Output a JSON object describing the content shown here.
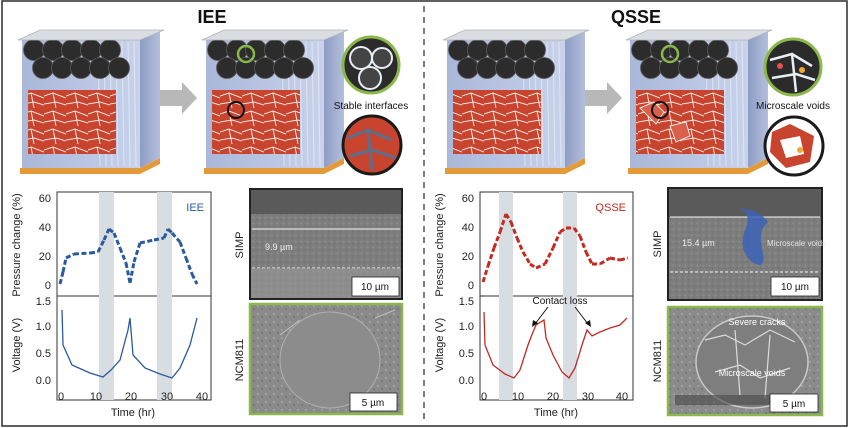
{
  "left": {
    "title": "IEE",
    "callout": "Stable interfaces",
    "plot": {
      "legend": "IEE",
      "ylabel_top": "Pressure change (%)",
      "ylabel_bottom": "Voltage (V)",
      "xlabel": "Time (hr)",
      "yticks_top": [
        "60",
        "40",
        "20",
        "0"
      ],
      "yticks_bottom": [
        "1.5",
        "1.0",
        "0.5",
        "0.0"
      ],
      "xticks": [
        "0",
        "10",
        "20",
        "30",
        "40"
      ]
    },
    "sem_top": {
      "side_label": "SIMP",
      "thickness": "9.9 µm",
      "scale": "10 µm"
    },
    "sem_bottom": {
      "side_label": "NCM811",
      "scale": "5 µm"
    }
  },
  "right": {
    "title": "QSSE",
    "callout": "Microscale voids",
    "plot": {
      "legend": "QSSE",
      "ylabel_top": "Pressure change (%)",
      "ylabel_bottom": "Voltage (V)",
      "xlabel": "Time (hr)",
      "annotation": "Contact loss",
      "yticks_top": [
        "60",
        "40",
        "20",
        "0"
      ],
      "yticks_bottom": [
        "1.5",
        "1.0",
        "0.5",
        "0.0"
      ],
      "xticks": [
        "0",
        "10",
        "20",
        "30",
        "40"
      ]
    },
    "sem_top": {
      "side_label": "SIMP",
      "thickness": "15.4 µm",
      "void_label": "Microscale voids",
      "scale": "10 µm"
    },
    "sem_bottom": {
      "side_label": "NCM811",
      "crack_label": "Severe cracks",
      "void_label": "Microscale voids",
      "scale": "5 µm"
    }
  },
  "colors": {
    "iee": "#2a5a9c",
    "qsse": "#c22a22",
    "sem_border": "#8bb84a",
    "highlight": "#d8dde2"
  }
}
